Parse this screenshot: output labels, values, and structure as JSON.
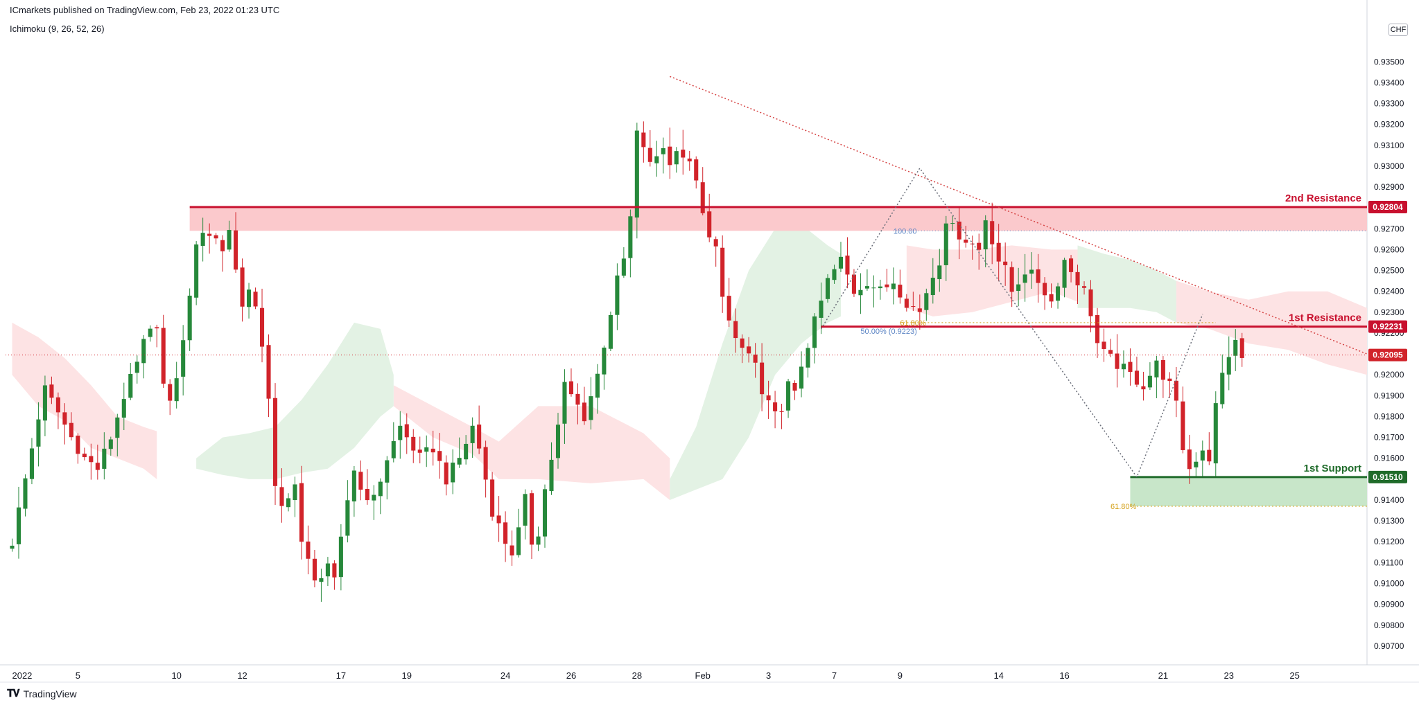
{
  "header": {
    "published": "ICmarkets published on TradingView.com, Feb 23, 2022 01:23 UTC",
    "indicator": "Ichimoku (9, 26, 52, 26)",
    "currency": "CHF",
    "footer_brand": "TradingView"
  },
  "colors": {
    "up": "#26883a",
    "down": "#d1232a",
    "resistance": "#c8102e",
    "support": "#1f6b2a",
    "zone_red": "#fbc9cc",
    "zone_green": "#c8e6c9",
    "cloud_red": "#fde3e4",
    "cloud_green": "#e3f2e4",
    "trend": "#d64545",
    "fib_orange": "#d4a017",
    "fib_blue": "#5b84c4"
  },
  "chart_data": {
    "type": "candlestick",
    "symbol_currency": "CHF",
    "ylim": [
      0.9061,
      0.9373
    ],
    "y_ticks": [
      "0.90700",
      "0.90800",
      "0.90900",
      "0.91000",
      "0.91100",
      "0.91200",
      "0.91300",
      "0.91400",
      "0.91500",
      "0.91600",
      "0.91700",
      "0.91800",
      "0.91900",
      "0.92000",
      "0.92100",
      "0.92200",
      "0.92300",
      "0.92400",
      "0.92500",
      "0.92600",
      "0.92700",
      "0.92800",
      "0.92900",
      "0.93000",
      "0.93100",
      "0.93200",
      "0.93300",
      "0.93400",
      "0.93500"
    ],
    "x_ticks": [
      {
        "label": "2022",
        "bar": 0
      },
      {
        "label": "5",
        "bar": 10
      },
      {
        "label": "10",
        "bar": 25
      },
      {
        "label": "12",
        "bar": 35
      },
      {
        "label": "17",
        "bar": 50
      },
      {
        "label": "19",
        "bar": 60
      },
      {
        "label": "24",
        "bar": 75
      },
      {
        "label": "26",
        "bar": 85
      },
      {
        "label": "28",
        "bar": 95
      },
      {
        "label": "Feb",
        "bar": 105
      },
      {
        "label": "3",
        "bar": 115
      },
      {
        "label": "7",
        "bar": 125
      },
      {
        "label": "9",
        "bar": 135
      },
      {
        "label": "14",
        "bar": 150
      },
      {
        "label": "16",
        "bar": 160
      },
      {
        "label": "21",
        "bar": 175
      },
      {
        "label": "23",
        "bar": 185
      },
      {
        "label": "25",
        "bar": 195
      }
    ],
    "bar_range": [
      -1,
      206
    ],
    "close_path": [
      [
        0,
        0.912
      ],
      [
        2,
        0.915
      ],
      [
        4,
        0.918
      ],
      [
        5,
        0.9193
      ],
      [
        7,
        0.9182
      ],
      [
        9,
        0.917
      ],
      [
        11,
        0.916
      ],
      [
        13,
        0.9155
      ],
      [
        15,
        0.917
      ],
      [
        17,
        0.919
      ],
      [
        19,
        0.9205
      ],
      [
        20,
        0.9215
      ],
      [
        22,
        0.9225
      ],
      [
        23,
        0.9195
      ],
      [
        24,
        0.9185
      ],
      [
        25,
        0.92
      ],
      [
        26,
        0.9215
      ],
      [
        27,
        0.924
      ],
      [
        28,
        0.926
      ],
      [
        29,
        0.927
      ],
      [
        31,
        0.9265
      ],
      [
        32,
        0.926
      ],
      [
        33,
        0.927
      ],
      [
        34,
        0.925
      ],
      [
        35,
        0.9235
      ],
      [
        36,
        0.924
      ],
      [
        37,
        0.923
      ],
      [
        38,
        0.9215
      ],
      [
        39,
        0.919
      ],
      [
        40,
        0.9145
      ],
      [
        41,
        0.9135
      ],
      [
        42,
        0.914
      ],
      [
        43,
        0.915
      ],
      [
        44,
        0.912
      ],
      [
        45,
        0.911
      ],
      [
        46,
        0.91
      ],
      [
        47,
        0.9105
      ],
      [
        48,
        0.911
      ],
      [
        49,
        0.91
      ],
      [
        50,
        0.912
      ],
      [
        51,
        0.914
      ],
      [
        52,
        0.9155
      ],
      [
        53,
        0.9145
      ],
      [
        55,
        0.914
      ],
      [
        57,
        0.916
      ],
      [
        59,
        0.9175
      ],
      [
        60,
        0.917
      ],
      [
        62,
        0.916
      ],
      [
        64,
        0.9165
      ],
      [
        66,
        0.915
      ],
      [
        68,
        0.916
      ],
      [
        70,
        0.9175
      ],
      [
        71,
        0.9165
      ],
      [
        73,
        0.9135
      ],
      [
        75,
        0.912
      ],
      [
        76,
        0.9115
      ],
      [
        77,
        0.9125
      ],
      [
        78,
        0.914
      ],
      [
        79,
        0.912
      ],
      [
        80,
        0.9125
      ],
      [
        81,
        0.9145
      ],
      [
        82,
        0.916
      ],
      [
        83,
        0.9175
      ],
      [
        84,
        0.9195
      ],
      [
        85,
        0.919
      ],
      [
        86,
        0.9185
      ],
      [
        87,
        0.918
      ],
      [
        89,
        0.92
      ],
      [
        90,
        0.9215
      ],
      [
        91,
        0.923
      ],
      [
        92,
        0.9245
      ],
      [
        93,
        0.9255
      ],
      [
        94,
        0.9275
      ],
      [
        95,
        0.9315
      ],
      [
        96,
        0.931
      ],
      [
        97,
        0.93
      ],
      [
        98,
        0.9305
      ],
      [
        99,
        0.931
      ],
      [
        100,
        0.93
      ],
      [
        101,
        0.931
      ],
      [
        102,
        0.9305
      ],
      [
        103,
        0.93
      ],
      [
        104,
        0.9295
      ],
      [
        105,
        0.9275
      ],
      [
        106,
        0.9265
      ],
      [
        107,
        0.926
      ],
      [
        108,
        0.924
      ],
      [
        109,
        0.9225
      ],
      [
        110,
        0.9215
      ],
      [
        112,
        0.921
      ],
      [
        113,
        0.9205
      ],
      [
        114,
        0.919
      ],
      [
        115,
        0.9185
      ],
      [
        116,
        0.918
      ],
      [
        117,
        0.9185
      ],
      [
        118,
        0.9195
      ],
      [
        119,
        0.919
      ],
      [
        120,
        0.9205
      ],
      [
        121,
        0.9215
      ],
      [
        122,
        0.9225
      ],
      [
        124,
        0.9245
      ],
      [
        125,
        0.925
      ],
      [
        126,
        0.9255
      ],
      [
        128,
        0.924
      ],
      [
        130,
        0.9245
      ],
      [
        132,
        0.924
      ],
      [
        134,
        0.9245
      ],
      [
        136,
        0.9235
      ],
      [
        138,
        0.923
      ],
      [
        139,
        0.924
      ],
      [
        141,
        0.9255
      ],
      [
        142,
        0.9275
      ],
      [
        143,
        0.927
      ],
      [
        145,
        0.9265
      ],
      [
        147,
        0.926
      ],
      [
        148,
        0.9275
      ],
      [
        149,
        0.9265
      ],
      [
        150,
        0.9255
      ],
      [
        151,
        0.925
      ],
      [
        152,
        0.924
      ],
      [
        154,
        0.925
      ],
      [
        156,
        0.9245
      ],
      [
        158,
        0.9235
      ],
      [
        160,
        0.9255
      ],
      [
        162,
        0.9245
      ],
      [
        163,
        0.924
      ],
      [
        164,
        0.923
      ],
      [
        165,
        0.9215
      ],
      [
        166,
        0.921
      ],
      [
        168,
        0.9205
      ],
      [
        170,
        0.92
      ],
      [
        172,
        0.9195
      ],
      [
        174,
        0.9205
      ],
      [
        176,
        0.9195
      ],
      [
        177,
        0.9185
      ],
      [
        178,
        0.9165
      ],
      [
        179,
        0.9155
      ],
      [
        180,
        0.916
      ],
      [
        181,
        0.9165
      ],
      [
        182,
        0.916
      ],
      [
        183,
        0.9185
      ],
      [
        184,
        0.92
      ],
      [
        185,
        0.921
      ],
      [
        186,
        0.9215
      ],
      [
        187,
        0.9208
      ]
    ],
    "ichimoku_cloud": {
      "red_segments": [
        {
          "x": [
            0,
            4,
            8,
            12,
            16,
            20,
            22
          ],
          "top": [
            0.9225,
            0.9218,
            0.9208,
            0.9195,
            0.918,
            0.9175,
            0.9173
          ],
          "bottom": [
            0.92,
            0.9185,
            0.9178,
            0.9165,
            0.916,
            0.9155,
            0.915
          ]
        },
        {
          "x": [
            58,
            64,
            70,
            74,
            80,
            88,
            96,
            100
          ],
          "top": [
            0.9195,
            0.9185,
            0.9175,
            0.9168,
            0.9185,
            0.9185,
            0.9172,
            0.916
          ],
          "bottom": [
            0.9185,
            0.917,
            0.9162,
            0.915,
            0.915,
            0.9148,
            0.915,
            0.914
          ]
        },
        {
          "x": [
            136,
            140,
            146,
            152,
            158,
            162
          ],
          "top": [
            0.9262,
            0.926,
            0.926,
            0.9262,
            0.926,
            0.926
          ],
          "bottom": [
            0.9232,
            0.9228,
            0.923,
            0.9235,
            0.924,
            0.9235
          ]
        },
        {
          "x": [
            177,
            182,
            188,
            194,
            200,
            206
          ],
          "top": [
            0.9245,
            0.924,
            0.9236,
            0.924,
            0.924,
            0.9232
          ],
          "bottom": [
            0.9225,
            0.9222,
            0.9215,
            0.9212,
            0.9205,
            0.92
          ]
        }
      ],
      "green_segments": [
        {
          "x": [
            28,
            32,
            36,
            40,
            44,
            48,
            52,
            56,
            58
          ],
          "top": [
            0.916,
            0.917,
            0.9172,
            0.9175,
            0.9188,
            0.9205,
            0.9225,
            0.9222,
            0.92
          ],
          "bottom": [
            0.9155,
            0.9152,
            0.915,
            0.915,
            0.9153,
            0.9155,
            0.9165,
            0.918,
            0.9185
          ]
        },
        {
          "x": [
            100,
            104,
            108,
            112,
            116,
            120,
            124,
            126
          ],
          "top": [
            0.915,
            0.9175,
            0.9215,
            0.925,
            0.927,
            0.9272,
            0.9262,
            0.9258
          ],
          "bottom": [
            0.914,
            0.9145,
            0.915,
            0.917,
            0.92,
            0.9215,
            0.9225,
            0.9228
          ]
        },
        {
          "x": [
            162,
            166,
            170,
            174,
            177
          ],
          "top": [
            0.9262,
            0.9258,
            0.9255,
            0.925,
            0.9245
          ],
          "bottom": [
            0.9232,
            0.9232,
            0.9232,
            0.923,
            0.9225
          ]
        }
      ]
    },
    "levels": [
      {
        "label": "2nd Resistance",
        "price": 0.92804,
        "price_label": "0.92804",
        "zone": [
          0.9269,
          0.928
        ],
        "from_bar": 27
      },
      {
        "label": "1st Resistance",
        "price": 0.92231,
        "price_label": "0.92231",
        "from_bar": 123
      },
      {
        "label": "1st Support",
        "price": 0.9151,
        "price_label": "0.91510",
        "zone": [
          0.9137,
          0.9151
        ],
        "from_bar": 170
      }
    ],
    "current_price": {
      "price": 0.92095,
      "price_label": "0.92095"
    },
    "downtrend_line": {
      "from": [
        100,
        0.9343
      ],
      "to": [
        206,
        0.921
      ]
    },
    "harmonic_pattern": [
      [
        123,
        0.9222
      ],
      [
        138,
        0.9299
      ],
      [
        171,
        0.9151
      ],
      [
        181,
        0.9229
      ]
    ],
    "fib_labels": [
      {
        "text": "100.00",
        "bar": 134,
        "price": 0.9269,
        "color": "fib_blue"
      },
      {
        "text": "61.80%",
        "bar": 135,
        "price": 0.9225,
        "color": "fib_orange"
      },
      {
        "text": "50.00% (0.9223)",
        "bar": 129,
        "price": 0.9221,
        "color": "fib_blue"
      },
      {
        "text": "61.80%",
        "bar": 167,
        "price": 0.9137,
        "color": "fib_orange"
      }
    ]
  }
}
